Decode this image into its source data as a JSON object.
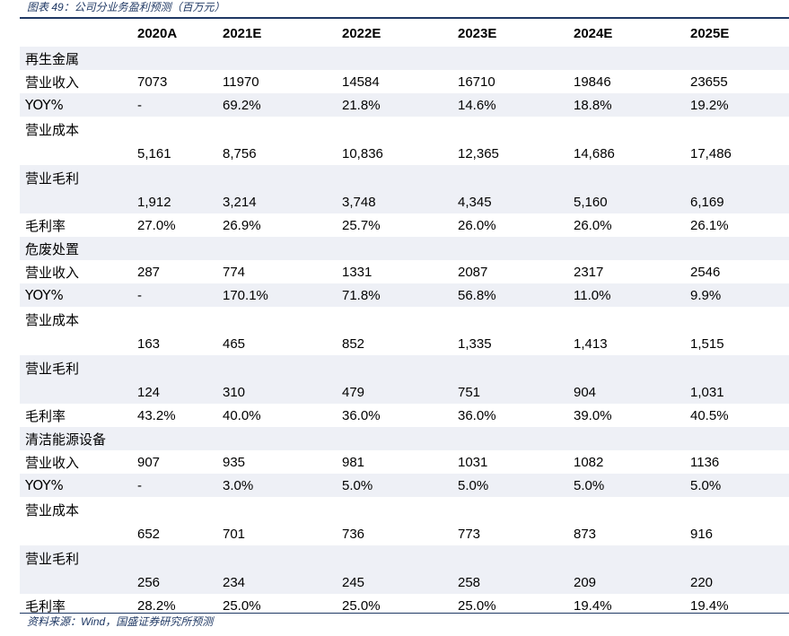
{
  "caption": "图表 49：公司分业务盈利预测（百万元）",
  "source": "资料来源：Wind，国盛证券研究所预测",
  "table": {
    "header": [
      "",
      "2020A",
      "2021E",
      "2022E",
      "2023E",
      "2024E",
      "2025E"
    ],
    "rows": [
      {
        "label": "再生金属",
        "values": [
          "",
          "",
          "",
          "",
          "",
          ""
        ],
        "kind": "sec",
        "shade": true
      },
      {
        "label": "营业收入",
        "values": [
          "7073",
          "11970",
          "14584",
          "16710",
          "19846",
          "23655"
        ],
        "kind": "std",
        "shade": false
      },
      {
        "label": "YOY%",
        "values": [
          "-",
          "69.2%",
          "21.8%",
          "14.6%",
          "18.8%",
          "19.2%"
        ],
        "kind": "std",
        "shade": true
      },
      {
        "label": "营业成本",
        "values": [
          "5,161",
          "8,756",
          "10,836",
          "12,365",
          "14,686",
          "17,486"
        ],
        "kind": "tall",
        "shade": false
      },
      {
        "label": "营业毛利",
        "values": [
          "1,912",
          "3,214",
          "3,748",
          "4,345",
          "5,160",
          "6,169"
        ],
        "kind": "tall",
        "shade": true
      },
      {
        "label": "毛利率",
        "values": [
          "27.0%",
          "26.9%",
          "25.7%",
          "26.0%",
          "26.0%",
          "26.1%"
        ],
        "kind": "std",
        "shade": false
      },
      {
        "label": "危废处置",
        "values": [
          "",
          "",
          "",
          "",
          "",
          ""
        ],
        "kind": "sec",
        "shade": true
      },
      {
        "label": "营业收入",
        "values": [
          "287",
          "774",
          "1331",
          "2087",
          "2317",
          "2546"
        ],
        "kind": "std",
        "shade": false
      },
      {
        "label": "YOY%",
        "values": [
          "-",
          "170.1%",
          "71.8%",
          "56.8%",
          "11.0%",
          "9.9%"
        ],
        "kind": "std",
        "shade": true
      },
      {
        "label": "营业成本",
        "values": [
          "163",
          "465",
          "852",
          "1,335",
          "1,413",
          "1,515"
        ],
        "kind": "tall",
        "shade": false
      },
      {
        "label": "营业毛利",
        "values": [
          "124",
          "310",
          "479",
          "751",
          "904",
          "1,031"
        ],
        "kind": "tall",
        "shade": true
      },
      {
        "label": "毛利率",
        "values": [
          "43.2%",
          "40.0%",
          "36.0%",
          "36.0%",
          "39.0%",
          "40.5%"
        ],
        "kind": "std",
        "shade": false
      },
      {
        "label": "清洁能源设备",
        "values": [
          "",
          "",
          "",
          "",
          "",
          ""
        ],
        "kind": "sec",
        "shade": true
      },
      {
        "label": "营业收入",
        "values": [
          "907",
          "935",
          "981",
          "1031",
          "1082",
          "1136"
        ],
        "kind": "std",
        "shade": false
      },
      {
        "label": "YOY%",
        "values": [
          "-",
          "3.0%",
          "5.0%",
          "5.0%",
          "5.0%",
          "5.0%"
        ],
        "kind": "std",
        "shade": true
      },
      {
        "label": "营业成本",
        "values": [
          "652",
          "701",
          "736",
          "773",
          "873",
          "916"
        ],
        "kind": "tall",
        "shade": false
      },
      {
        "label": "营业毛利",
        "values": [
          "256",
          "234",
          "245",
          "258",
          "209",
          "220"
        ],
        "kind": "tall",
        "shade": true
      },
      {
        "label": "毛利率",
        "values": [
          "28.2%",
          "25.0%",
          "25.0%",
          "25.0%",
          "19.4%",
          "19.4%"
        ],
        "kind": "std",
        "shade": false
      }
    ]
  }
}
